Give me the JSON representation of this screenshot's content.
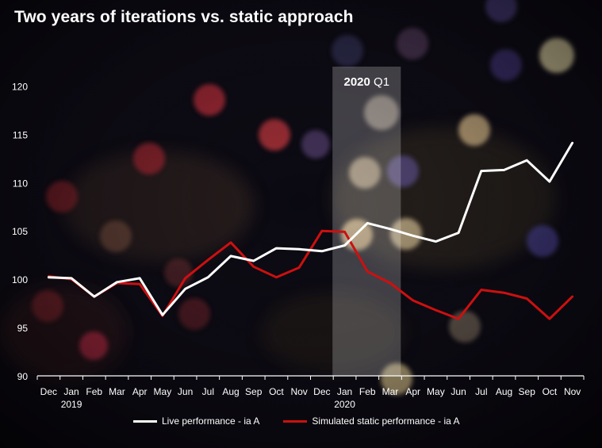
{
  "colors": {
    "live": "#ffffff",
    "static": "#cc1010",
    "highlight": "#ffffff"
  },
  "chart_data": {
    "type": "line",
    "title": "Two years of iterations vs. static approach",
    "x": [
      "Dec",
      "Jan",
      "Feb",
      "Mar",
      "Apr",
      "May",
      "Jun",
      "Jul",
      "Aug",
      "Sep",
      "Oct",
      "Nov",
      "Dec",
      "Jan",
      "Feb",
      "Mar",
      "Apr",
      "May",
      "Jun",
      "Jul",
      "Aug",
      "Sep",
      "Oct",
      "Nov"
    ],
    "year_labels": [
      {
        "after_index": 1,
        "label": "2019"
      },
      {
        "after_index": 13,
        "label": "2020"
      }
    ],
    "ylim": [
      90,
      122
    ],
    "yticks": [
      90,
      95,
      100,
      105,
      110,
      115,
      120
    ],
    "grid": false,
    "legend_position": "bottom",
    "highlight": {
      "from_index": 13,
      "to_index": 15,
      "label_bold": "2020",
      "label_rest": "Q1"
    },
    "series": [
      {
        "name": "Live performance - ia A",
        "color_key": "live",
        "values": [
          100.2,
          100.1,
          98.2,
          99.7,
          100.1,
          96.3,
          99.0,
          100.2,
          102.4,
          101.9,
          103.2,
          103.1,
          102.9,
          103.5,
          105.8,
          105.2,
          104.5,
          103.9,
          104.8,
          111.2,
          111.3,
          112.3,
          110.1,
          114.1
        ]
      },
      {
        "name": "Simulated static performance - ia A",
        "color_key": "static",
        "values": [
          100.3,
          100.0,
          98.2,
          99.6,
          99.5,
          96.2,
          100.1,
          102.0,
          103.8,
          101.3,
          100.2,
          101.2,
          105.0,
          104.9,
          100.8,
          99.6,
          97.8,
          96.8,
          95.9,
          98.9,
          98.6,
          98.0,
          95.9,
          98.2
        ]
      }
    ]
  }
}
